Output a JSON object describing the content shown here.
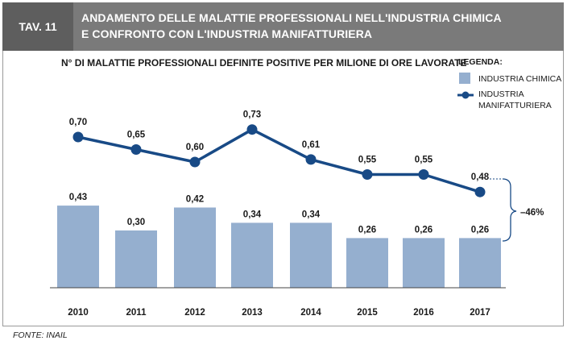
{
  "header": {
    "tav_label": "TAV. 11",
    "title_line1": "ANDAMENTO DELLE MALATTIE PROFESSIONALI NELL'INDUSTRIA CHIMICA",
    "title_line2": "E CONFRONTO CON L'INDUSTRIA MANIFATTURIERA"
  },
  "footer": {
    "source": "FONTE: INAIL"
  },
  "colors": {
    "bar": "#95afcf",
    "line": "#184a86",
    "header_bg": "#7a7a7a",
    "tav_bg": "#5e5e5e"
  },
  "chart_data": {
    "type": "bar+line",
    "title": "N° DI MALATTIE PROFESSIONALI DEFINITE POSITIVE PER MILIONE DI ORE LAVORATE",
    "categories": [
      "2010",
      "2011",
      "2012",
      "2013",
      "2014",
      "2015",
      "2016",
      "2017"
    ],
    "series": [
      {
        "name": "INDUSTRIA CHIMICA",
        "kind": "bar",
        "values": [
          0.43,
          0.3,
          0.42,
          0.34,
          0.34,
          0.26,
          0.26,
          0.26
        ],
        "labels": [
          "0,43",
          "0,30",
          "0,42",
          "0,34",
          "0,34",
          "0,26",
          "0,26",
          "0,26"
        ]
      },
      {
        "name": "INDUSTRIA MANIFATTURIERA",
        "kind": "line",
        "values": [
          0.7,
          0.65,
          0.6,
          0.73,
          0.61,
          0.55,
          0.55,
          0.48
        ],
        "labels": [
          "0,70",
          "0,65",
          "0,60",
          "0,73",
          "0,61",
          "0,55",
          "0,55",
          "0,48"
        ]
      }
    ],
    "legend": {
      "title": "LEGENDA:",
      "bar_label": "INDUSTRIA CHIMICA",
      "line_label_1": "INDUSTRIA",
      "line_label_2": "MANIFATTURIERA",
      "position": "top-right"
    },
    "annotation": "–46%",
    "ylim": [
      0,
      0.8
    ]
  }
}
